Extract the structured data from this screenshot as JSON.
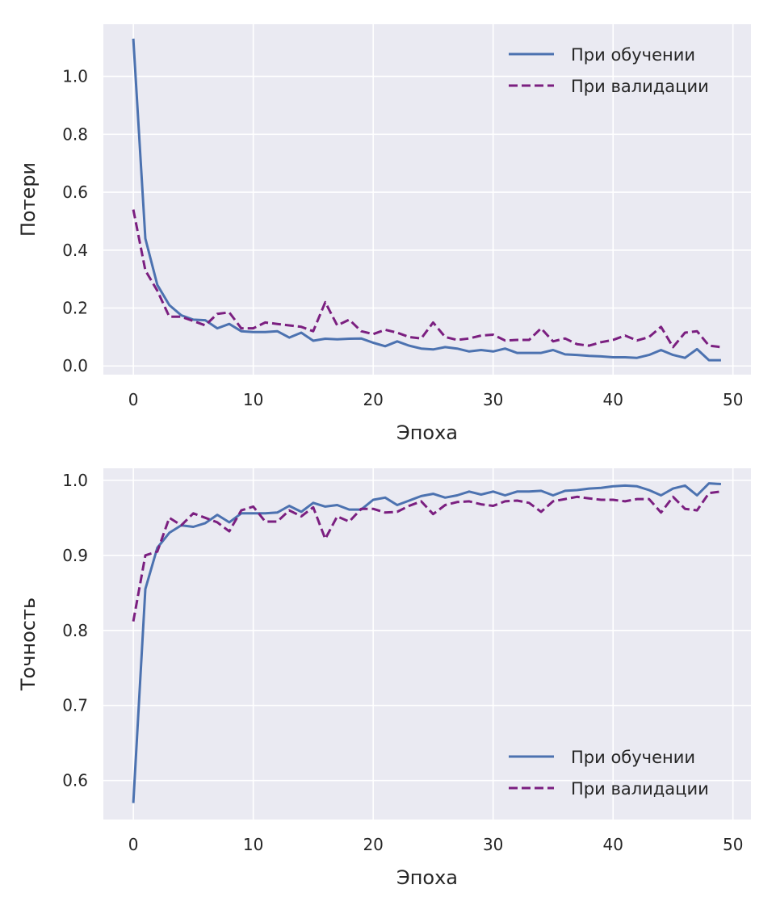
{
  "figure": {
    "background": "#ffffff",
    "plot_background": "#eaeaf2",
    "grid_color": "#ffffff",
    "text_color": "#262626"
  },
  "chart_data": [
    {
      "type": "line",
      "xlabel": "Эпоха",
      "ylabel": "Потери",
      "xlim": [
        -2.5,
        51.5
      ],
      "ylim": [
        -0.03,
        1.18
      ],
      "xticks": [
        0,
        10,
        20,
        30,
        40,
        50
      ],
      "yticks": [
        0.0,
        0.2,
        0.4,
        0.6,
        0.8,
        1.0
      ],
      "ytick_labels": [
        "0.0",
        "0.2",
        "0.4",
        "0.6",
        "0.8",
        "1.0"
      ],
      "grid": true,
      "legend_position": "upper right",
      "x": [
        0,
        1,
        2,
        3,
        4,
        5,
        6,
        7,
        8,
        9,
        10,
        11,
        12,
        13,
        14,
        15,
        16,
        17,
        18,
        19,
        20,
        21,
        22,
        23,
        24,
        25,
        26,
        27,
        28,
        29,
        30,
        31,
        32,
        33,
        34,
        35,
        36,
        37,
        38,
        39,
        40,
        41,
        42,
        43,
        44,
        45,
        46,
        47,
        48,
        49
      ],
      "series": [
        {
          "name": "При обучении",
          "color": "#4c72b0",
          "dash": "solid",
          "values": [
            1.13,
            0.44,
            0.28,
            0.21,
            0.175,
            0.16,
            0.158,
            0.13,
            0.145,
            0.12,
            0.117,
            0.117,
            0.12,
            0.098,
            0.115,
            0.087,
            0.094,
            0.092,
            0.094,
            0.095,
            0.08,
            0.068,
            0.085,
            0.07,
            0.06,
            0.057,
            0.065,
            0.06,
            0.05,
            0.055,
            0.05,
            0.06,
            0.045,
            0.045,
            0.045,
            0.055,
            0.04,
            0.038,
            0.035,
            0.033,
            0.03,
            0.03,
            0.028,
            0.038,
            0.055,
            0.038,
            0.028,
            0.058,
            0.02,
            0.02
          ]
        },
        {
          "name": "При валидации",
          "color": "#7b1f80",
          "dash": "dashed",
          "values": [
            0.54,
            0.33,
            0.26,
            0.17,
            0.17,
            0.155,
            0.14,
            0.18,
            0.185,
            0.13,
            0.13,
            0.15,
            0.145,
            0.14,
            0.135,
            0.12,
            0.22,
            0.14,
            0.16,
            0.12,
            0.11,
            0.125,
            0.115,
            0.1,
            0.095,
            0.15,
            0.1,
            0.09,
            0.095,
            0.105,
            0.108,
            0.088,
            0.09,
            0.09,
            0.13,
            0.085,
            0.095,
            0.075,
            0.07,
            0.082,
            0.09,
            0.105,
            0.088,
            0.1,
            0.135,
            0.065,
            0.115,
            0.12,
            0.07,
            0.065
          ]
        }
      ]
    },
    {
      "type": "line",
      "xlabel": "Эпоха",
      "ylabel": "Точность",
      "xlim": [
        -2.5,
        51.5
      ],
      "ylim": [
        0.548,
        1.016
      ],
      "xticks": [
        0,
        10,
        20,
        30,
        40,
        50
      ],
      "yticks": [
        0.6,
        0.7,
        0.8,
        0.9,
        1.0
      ],
      "ytick_labels": [
        "0.6",
        "0.7",
        "0.8",
        "0.9",
        "1.0"
      ],
      "grid": true,
      "legend_position": "lower right",
      "x": [
        0,
        1,
        2,
        3,
        4,
        5,
        6,
        7,
        8,
        9,
        10,
        11,
        12,
        13,
        14,
        15,
        16,
        17,
        18,
        19,
        20,
        21,
        22,
        23,
        24,
        25,
        26,
        27,
        28,
        29,
        30,
        31,
        32,
        33,
        34,
        35,
        36,
        37,
        38,
        39,
        40,
        41,
        42,
        43,
        44,
        45,
        46,
        47,
        48,
        49
      ],
      "series": [
        {
          "name": "При обучении",
          "color": "#4c72b0",
          "dash": "solid",
          "values": [
            0.57,
            0.855,
            0.91,
            0.93,
            0.94,
            0.938,
            0.943,
            0.954,
            0.944,
            0.956,
            0.956,
            0.956,
            0.957,
            0.966,
            0.958,
            0.97,
            0.965,
            0.967,
            0.961,
            0.961,
            0.974,
            0.977,
            0.967,
            0.973,
            0.979,
            0.982,
            0.977,
            0.98,
            0.985,
            0.981,
            0.985,
            0.98,
            0.985,
            0.985,
            0.986,
            0.98,
            0.986,
            0.987,
            0.989,
            0.99,
            0.992,
            0.993,
            0.992,
            0.987,
            0.98,
            0.989,
            0.993,
            0.98,
            0.996,
            0.995
          ]
        },
        {
          "name": "При валидации",
          "color": "#7b1f80",
          "dash": "dashed",
          "values": [
            0.812,
            0.9,
            0.905,
            0.95,
            0.94,
            0.956,
            0.95,
            0.944,
            0.932,
            0.96,
            0.965,
            0.945,
            0.945,
            0.96,
            0.952,
            0.964,
            0.922,
            0.952,
            0.945,
            0.962,
            0.962,
            0.957,
            0.958,
            0.966,
            0.972,
            0.955,
            0.967,
            0.971,
            0.972,
            0.968,
            0.966,
            0.972,
            0.973,
            0.97,
            0.958,
            0.972,
            0.975,
            0.978,
            0.976,
            0.974,
            0.974,
            0.972,
            0.975,
            0.975,
            0.957,
            0.978,
            0.962,
            0.96,
            0.983,
            0.985
          ]
        }
      ]
    }
  ]
}
